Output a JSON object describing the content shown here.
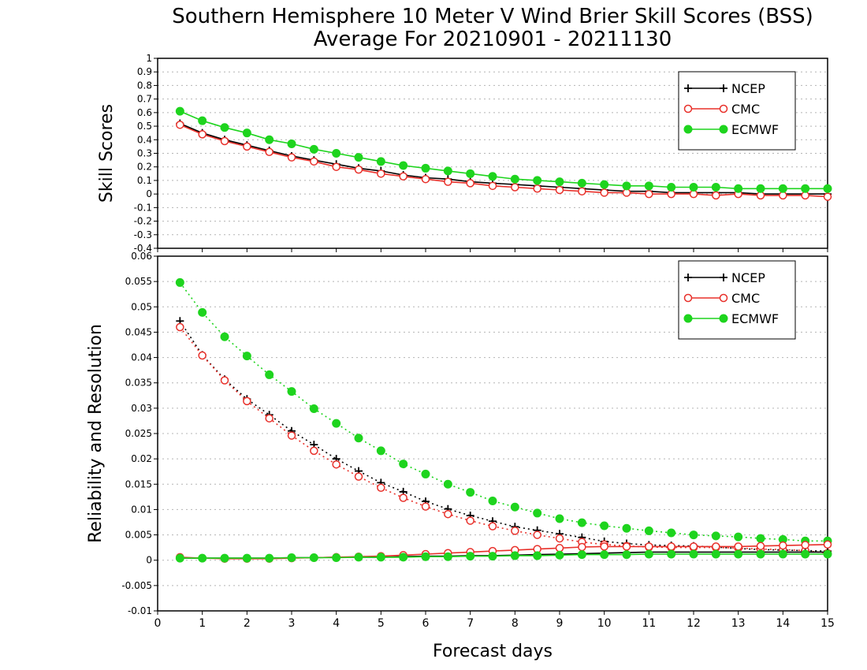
{
  "title": {
    "line1": "Southern Hemisphere 10 Meter V Wind Brier Skill Scores (BSS)",
    "line2": "Average For 20210901 - 20211130"
  },
  "xlabel": "Forecast days",
  "colors": {
    "NCEP": "#000000",
    "CMC": "#e8302a",
    "ECMWF": "#1ed41e"
  },
  "chart_data": [
    {
      "type": "line",
      "panel": "top",
      "ylabel": "Skill Scores",
      "xlim": [
        0,
        15
      ],
      "ylim": [
        -0.4,
        1
      ],
      "grid": true,
      "legend_position": "top-right",
      "x_ticks": [
        "0",
        "1",
        "2",
        "3",
        "4",
        "5",
        "6",
        "7",
        "8",
        "9",
        "10",
        "11",
        "12",
        "13",
        "14",
        "15"
      ],
      "y_ticks": [
        "-0.4",
        "-0.3",
        "-0.2",
        "-0.1",
        "0",
        "0.1",
        "0.2",
        "0.3",
        "0.4",
        "0.5",
        "0.6",
        "0.7",
        "0.8",
        "0.9",
        "1"
      ],
      "x": [
        0.5,
        1,
        1.5,
        2,
        2.5,
        3,
        3.5,
        4,
        4.5,
        5,
        5.5,
        6,
        6.5,
        7,
        7.5,
        8,
        8.5,
        9,
        9.5,
        10,
        10.5,
        11,
        11.5,
        12,
        12.5,
        13,
        13.5,
        14,
        14.5,
        15
      ],
      "series": [
        {
          "name": "NCEP",
          "marker": "plus",
          "style": "solid",
          "values": [
            0.52,
            0.45,
            0.4,
            0.36,
            0.32,
            0.28,
            0.25,
            0.22,
            0.19,
            0.17,
            0.14,
            0.12,
            0.11,
            0.09,
            0.08,
            0.07,
            0.06,
            0.05,
            0.04,
            0.03,
            0.02,
            0.02,
            0.01,
            0.01,
            0.01,
            0.01,
            0.0,
            0.0,
            0.0,
            0.0
          ]
        },
        {
          "name": "CMC",
          "marker": "open-circle",
          "style": "solid",
          "values": [
            0.51,
            0.44,
            0.39,
            0.35,
            0.31,
            0.27,
            0.24,
            0.2,
            0.18,
            0.15,
            0.13,
            0.11,
            0.09,
            0.08,
            0.06,
            0.05,
            0.04,
            0.03,
            0.02,
            0.01,
            0.01,
            0.0,
            0.0,
            0.0,
            -0.01,
            0.0,
            -0.01,
            -0.01,
            -0.01,
            -0.02
          ]
        },
        {
          "name": "ECMWF",
          "marker": "filled-circle",
          "style": "solid",
          "values": [
            0.61,
            0.54,
            0.49,
            0.45,
            0.4,
            0.37,
            0.33,
            0.3,
            0.27,
            0.24,
            0.21,
            0.19,
            0.17,
            0.15,
            0.13,
            0.11,
            0.1,
            0.09,
            0.08,
            0.07,
            0.06,
            0.06,
            0.05,
            0.05,
            0.05,
            0.04,
            0.04,
            0.04,
            0.04,
            0.04
          ]
        }
      ]
    },
    {
      "type": "line",
      "panel": "bottom",
      "ylabel": "Reliability and Resolution",
      "xlim": [
        0,
        15
      ],
      "ylim": [
        -0.01,
        0.06
      ],
      "grid": true,
      "legend_position": "top-right",
      "x_ticks": [
        "0",
        "1",
        "2",
        "3",
        "4",
        "5",
        "6",
        "7",
        "8",
        "9",
        "10",
        "11",
        "12",
        "13",
        "14",
        "15"
      ],
      "y_ticks": [
        "-0.01",
        "-0.005",
        "0",
        "0.005",
        "0.01",
        "0.015",
        "0.02",
        "0.025",
        "0.03",
        "0.035",
        "0.04",
        "0.045",
        "0.05",
        "0.055",
        "0.06"
      ],
      "x": [
        0.5,
        1,
        1.5,
        2,
        2.5,
        3,
        3.5,
        4,
        4.5,
        5,
        5.5,
        6,
        6.5,
        7,
        7.5,
        8,
        8.5,
        9,
        9.5,
        10,
        10.5,
        11,
        11.5,
        12,
        12.5,
        13,
        13.5,
        14,
        14.5,
        15
      ],
      "series": [
        {
          "name": "NCEP",
          "metric": "Resolution",
          "marker": "plus",
          "style": "dotted",
          "values": [
            0.0472,
            0.0405,
            0.0357,
            0.0318,
            0.0287,
            0.0255,
            0.0228,
            0.02,
            0.0176,
            0.0153,
            0.0135,
            0.0116,
            0.0101,
            0.0088,
            0.0077,
            0.0066,
            0.0059,
            0.0052,
            0.0045,
            0.0037,
            0.0033,
            0.003,
            0.0029,
            0.0028,
            0.0026,
            0.0023,
            0.0021,
            0.002,
            0.0019,
            0.0018
          ]
        },
        {
          "name": "CMC",
          "metric": "Resolution",
          "marker": "open-circle",
          "style": "dotted",
          "values": [
            0.046,
            0.0404,
            0.0355,
            0.0314,
            0.028,
            0.0246,
            0.0216,
            0.0189,
            0.0165,
            0.0143,
            0.0123,
            0.0106,
            0.0091,
            0.0078,
            0.0067,
            0.0058,
            0.005,
            0.0043,
            0.0036,
            0.0031,
            0.0028,
            0.0026,
            0.0025,
            0.0025,
            0.0025,
            0.0024,
            0.0022,
            0.0021,
            0.0019,
            0.0014
          ]
        },
        {
          "name": "ECMWF",
          "metric": "Resolution",
          "marker": "filled-circle",
          "style": "dotted",
          "values": [
            0.0548,
            0.0489,
            0.0441,
            0.0403,
            0.0366,
            0.0333,
            0.0299,
            0.027,
            0.0241,
            0.0216,
            0.019,
            0.017,
            0.015,
            0.0134,
            0.0117,
            0.0105,
            0.0093,
            0.0082,
            0.0074,
            0.0068,
            0.0063,
            0.0058,
            0.0054,
            0.005,
            0.0048,
            0.0046,
            0.0043,
            0.0041,
            0.0038,
            0.0038
          ]
        },
        {
          "name": "NCEP",
          "metric": "Reliability",
          "marker": "plus",
          "style": "solid",
          "values": [
            0.0004,
            0.0004,
            0.0004,
            0.0004,
            0.0004,
            0.0005,
            0.0005,
            0.0006,
            0.0006,
            0.0006,
            0.0007,
            0.0008,
            0.0008,
            0.0009,
            0.0009,
            0.001,
            0.0011,
            0.0012,
            0.0013,
            0.0014,
            0.0015,
            0.0016,
            0.0016,
            0.0016,
            0.0016,
            0.0016,
            0.0016,
            0.0016,
            0.0016,
            0.0016
          ]
        },
        {
          "name": "CMC",
          "metric": "Reliability",
          "marker": "open-circle",
          "style": "solid",
          "values": [
            0.0006,
            0.0004,
            0.0003,
            0.0003,
            0.0003,
            0.0004,
            0.0005,
            0.0006,
            0.0007,
            0.0008,
            0.001,
            0.0012,
            0.0014,
            0.0016,
            0.0018,
            0.002,
            0.0022,
            0.0024,
            0.0026,
            0.0027,
            0.0027,
            0.0027,
            0.0027,
            0.0027,
            0.0027,
            0.0027,
            0.0028,
            0.0029,
            0.003,
            0.0031
          ]
        },
        {
          "name": "ECMWF",
          "metric": "Reliability",
          "marker": "filled-circle",
          "style": "solid",
          "values": [
            0.0004,
            0.0004,
            0.0004,
            0.0004,
            0.0004,
            0.0005,
            0.0005,
            0.0005,
            0.0006,
            0.0006,
            0.0006,
            0.0007,
            0.0007,
            0.0008,
            0.0008,
            0.0009,
            0.0009,
            0.001,
            0.0011,
            0.0011,
            0.0011,
            0.0012,
            0.0012,
            0.0012,
            0.0012,
            0.0012,
            0.0012,
            0.0012,
            0.0012,
            0.0012
          ]
        }
      ]
    }
  ]
}
